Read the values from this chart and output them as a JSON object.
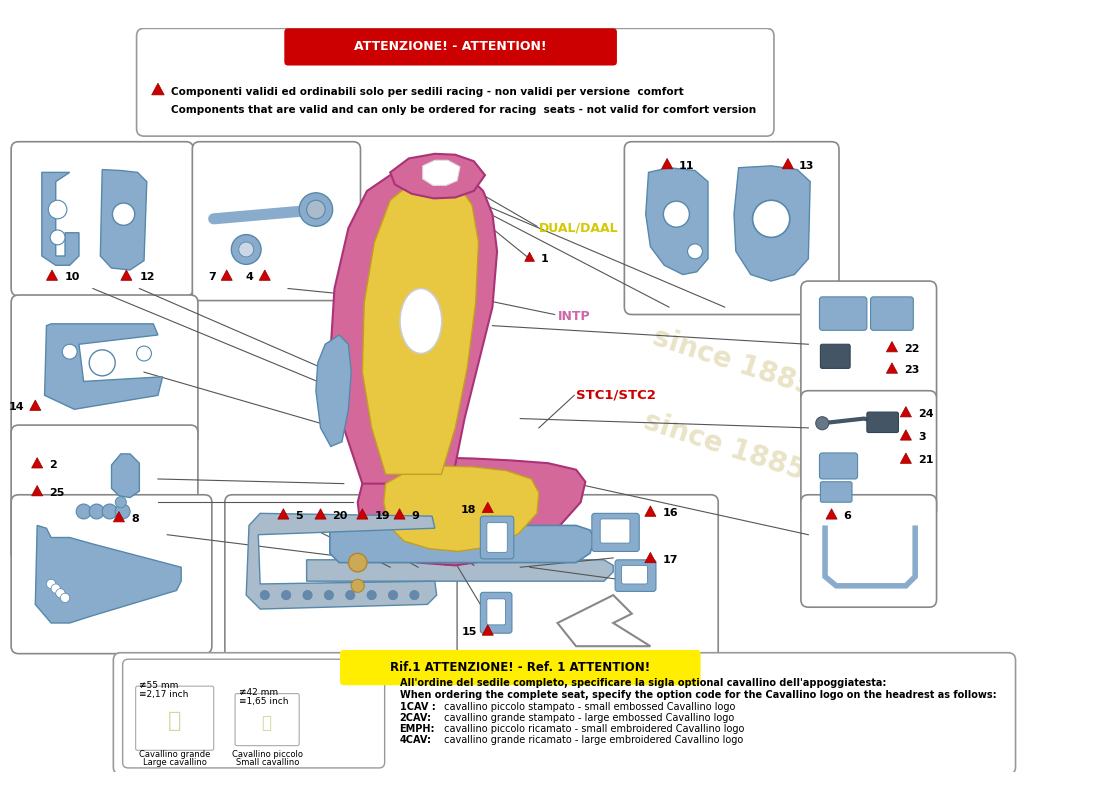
{
  "bg_color": "#ffffff",
  "attention_text": "ATTENZIONE! - ATTENTION!",
  "attention_line1": "Componenti validi ed ordinabili solo per sedili racing - non validi per versione  comfort",
  "attention_line2": "Components that are valid and can only be ordered for racing  seats - not valid for comfort version",
  "dual_daal_color": "#d4c800",
  "intp_color": "#cc66aa",
  "stc_color": "#cc0000",
  "label_dual": "DUAL/DAAL",
  "label_intp": "INTP",
  "label_stc": "STC1/STC2",
  "ref_attention_text": "Rif.1 ATTENZIONE! - Ref. 1 ATTENTION!",
  "ref_text_lines": [
    "All'ordine del sedile completo, specificare la sigla optional cavallino dell'appoggiatesta:",
    "When ordering the complete seat, specify the option code for the Cavallino logo on the headrest as follows:",
    "1CAV : cavallino piccolo stampato - small embossed Cavallino logo",
    "2CAV: cavallino grande stampato - large embossed Cavallino logo",
    "EMPH: cavallino piccolo ricamato - small embroidered Cavallino logo",
    "4CAV: cavallino grande ricamato - large embroidered Cavallino logo"
  ],
  "seat_pink": "#d4689a",
  "seat_yellow": "#e8c840",
  "part_color": "#8aaccc",
  "part_edge": "#5588aa"
}
